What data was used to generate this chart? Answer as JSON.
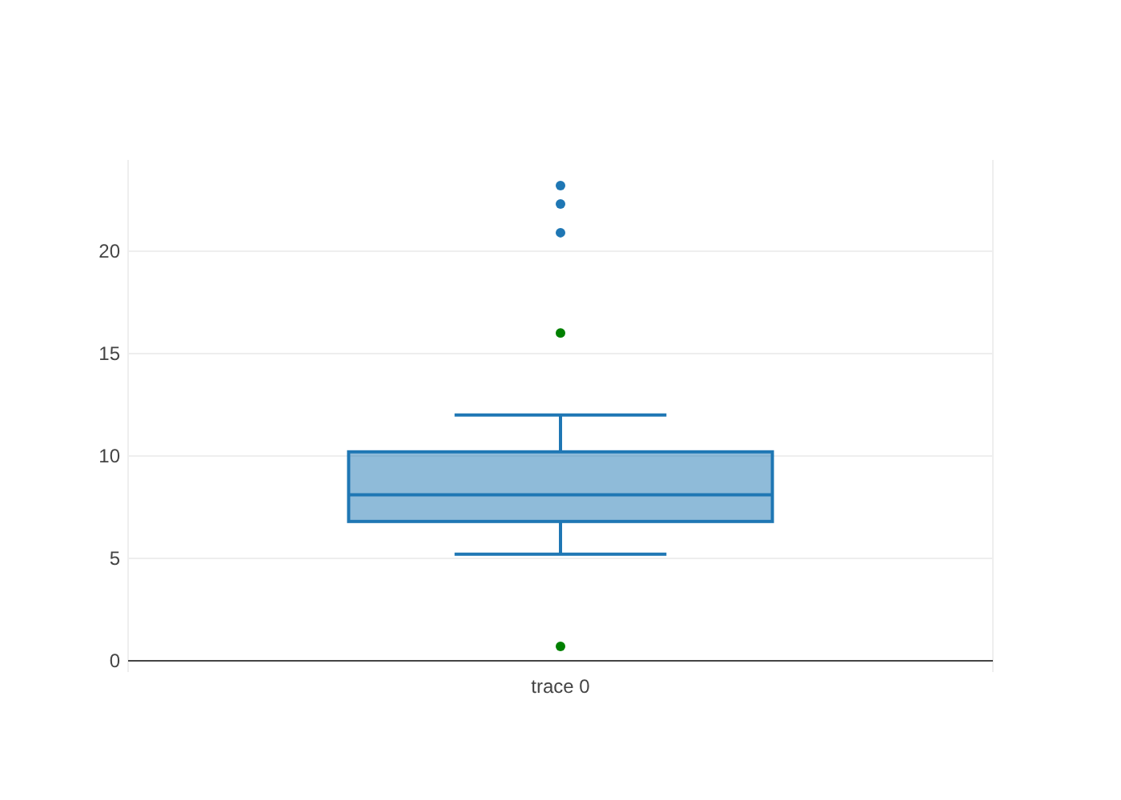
{
  "chart_data": {
    "type": "box",
    "categories": [
      "trace 0"
    ],
    "series": [
      {
        "type": "box",
        "color": "#1f77b4",
        "boxes": [
          {
            "low": 5.2,
            "q1": 6.8,
            "median": 8.1,
            "q3": 10.2,
            "high": 12,
            "outliers": [
              23.2,
              22.3,
              20.9
            ]
          }
        ]
      },
      {
        "type": "scatter",
        "color": "#008000",
        "x": [
          "trace 0",
          "trace 0"
        ],
        "values": [
          16,
          0.7
        ]
      }
    ],
    "ylim": [
      -0.55,
      24.45
    ],
    "yticks": [
      0,
      5,
      10,
      15,
      20
    ],
    "grid": "y"
  }
}
